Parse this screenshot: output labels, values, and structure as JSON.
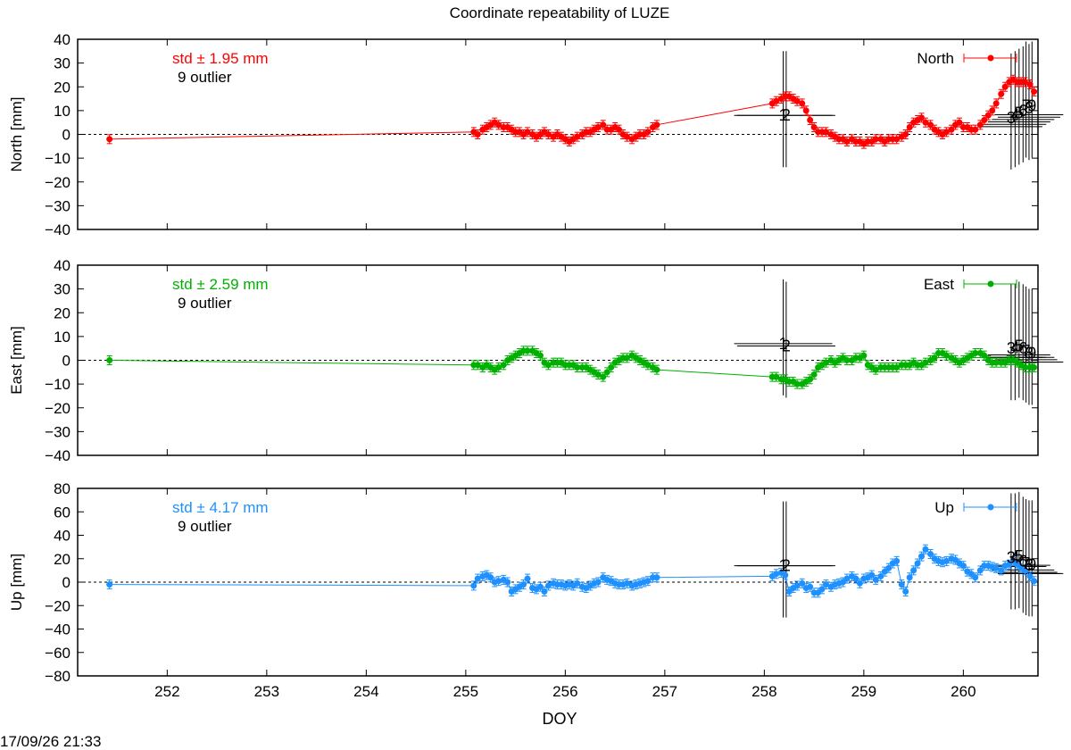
{
  "title": "Coordinate repeatability of LUZE",
  "xlabel": "DOY",
  "footer": "17/09/26 21:33",
  "colors": {
    "north": "#ff0000",
    "east": "#00b000",
    "up": "#1e90ff",
    "outlier": "#000000"
  },
  "chart_data": [
    {
      "type": "scatter",
      "component": "North",
      "ylabel": "North [mm]",
      "legend": "North",
      "legend_position": "top-right",
      "std_label": "std ± 1.95 mm",
      "outlier_label": "9 outlier",
      "xlim": [
        251.1,
        260.75
      ],
      "ylim": [
        -40,
        40
      ],
      "yticks": [
        -40,
        -30,
        -20,
        -10,
        0,
        10,
        20,
        30,
        40
      ],
      "xticks": [
        252,
        253,
        254,
        255,
        256,
        257,
        258,
        259,
        260
      ],
      "zero_line": true,
      "series": [
        {
          "name": "North",
          "x": [
            251.42,
            255.08,
            255.12,
            255.17,
            255.21,
            255.25,
            255.29,
            255.33,
            255.38,
            255.42,
            255.46,
            255.5,
            255.54,
            255.58,
            255.62,
            255.67,
            255.71,
            255.75,
            255.79,
            255.83,
            255.88,
            255.92,
            255.96,
            256.0,
            256.04,
            256.08,
            256.12,
            256.17,
            256.21,
            256.25,
            256.29,
            256.33,
            256.38,
            256.42,
            256.46,
            256.5,
            256.54,
            256.58,
            256.62,
            256.67,
            256.71,
            256.75,
            256.79,
            256.83,
            256.88,
            256.92,
            258.08,
            258.12,
            258.17,
            258.21,
            258.25,
            258.29,
            258.33,
            258.38,
            258.42,
            258.46,
            258.5,
            258.54,
            258.58,
            258.62,
            258.67,
            258.71,
            258.75,
            258.79,
            258.83,
            258.88,
            258.92,
            258.96,
            259.0,
            259.04,
            259.08,
            259.12,
            259.17,
            259.21,
            259.25,
            259.29,
            259.33,
            259.38,
            259.42,
            259.46,
            259.5,
            259.54,
            259.58,
            259.62,
            259.67,
            259.71,
            259.75,
            259.79,
            259.83,
            259.88,
            259.92,
            259.96,
            260.0,
            260.04,
            260.08,
            260.12,
            260.17,
            260.21,
            260.25,
            260.29,
            260.33,
            260.38,
            260.42,
            260.46,
            260.5,
            260.54,
            260.58,
            260.62,
            260.67,
            260.71
          ],
          "y": [
            -2,
            1,
            0,
            2,
            3,
            4,
            5,
            4,
            3,
            3,
            2,
            1,
            1,
            0,
            1,
            0,
            -1,
            0,
            1,
            0,
            -1,
            0,
            -1,
            -2,
            -3,
            -2,
            -1,
            0,
            1,
            1,
            2,
            3,
            4,
            2,
            2,
            3,
            2,
            0,
            -1,
            -2,
            -1,
            0,
            0,
            1,
            3,
            4,
            13,
            14,
            15,
            16,
            16,
            15,
            14,
            13,
            10,
            6,
            3,
            1,
            1,
            1,
            0,
            -1,
            -2,
            -2,
            -3,
            -2,
            -3,
            -3,
            -4,
            -3,
            -3,
            -2,
            -2,
            -3,
            -2,
            -2,
            -2,
            -1,
            0,
            3,
            5,
            6,
            7,
            5,
            4,
            2,
            1,
            0,
            1,
            2,
            4,
            5,
            3,
            3,
            2,
            2,
            4,
            6,
            8,
            10,
            13,
            17,
            20,
            22,
            23,
            22,
            22,
            22,
            21,
            18
          ]
        }
      ],
      "outliers": [
        {
          "label": "1",
          "x": 258.19,
          "y": 8
        },
        {
          "label": "2",
          "x": 258.22,
          "y": 8
        },
        {
          "label": "3",
          "x": 260.48,
          "y": 7
        },
        {
          "label": "4",
          "x": 260.52,
          "y": 8
        },
        {
          "label": "5",
          "x": 260.56,
          "y": 9
        },
        {
          "label": "6",
          "x": 260.6,
          "y": 10
        },
        {
          "label": "7",
          "x": 260.63,
          "y": 12
        },
        {
          "label": "8",
          "x": 260.66,
          "y": 11
        },
        {
          "label": "9",
          "x": 260.69,
          "y": 12
        }
      ]
    },
    {
      "type": "scatter",
      "component": "East",
      "ylabel": "East [mm]",
      "legend": "East",
      "legend_position": "top-right",
      "std_label": "std ± 2.59 mm",
      "outlier_label": "9 outlier",
      "xlim": [
        251.1,
        260.75
      ],
      "ylim": [
        -40,
        40
      ],
      "yticks": [
        -40,
        -30,
        -20,
        -10,
        0,
        10,
        20,
        30,
        40
      ],
      "xticks": [
        252,
        253,
        254,
        255,
        256,
        257,
        258,
        259,
        260
      ],
      "zero_line": true,
      "series": [
        {
          "name": "East",
          "x": [
            251.42,
            255.08,
            255.12,
            255.17,
            255.21,
            255.25,
            255.29,
            255.33,
            255.38,
            255.42,
            255.46,
            255.5,
            255.54,
            255.58,
            255.62,
            255.67,
            255.71,
            255.75,
            255.79,
            255.83,
            255.88,
            255.92,
            255.96,
            256.0,
            256.04,
            256.08,
            256.12,
            256.17,
            256.21,
            256.25,
            256.29,
            256.33,
            256.38,
            256.42,
            256.46,
            256.5,
            256.54,
            256.58,
            256.62,
            256.67,
            256.71,
            256.75,
            256.79,
            256.83,
            256.88,
            256.92,
            258.08,
            258.12,
            258.17,
            258.21,
            258.25,
            258.29,
            258.33,
            258.38,
            258.42,
            258.46,
            258.5,
            258.54,
            258.58,
            258.62,
            258.67,
            258.71,
            258.75,
            258.79,
            258.83,
            258.88,
            258.92,
            258.96,
            259.0,
            259.04,
            259.08,
            259.12,
            259.17,
            259.21,
            259.25,
            259.29,
            259.33,
            259.38,
            259.42,
            259.46,
            259.5,
            259.54,
            259.58,
            259.62,
            259.67,
            259.71,
            259.75,
            259.79,
            259.83,
            259.88,
            259.92,
            259.96,
            260.0,
            260.04,
            260.08,
            260.12,
            260.17,
            260.21,
            260.25,
            260.29,
            260.33,
            260.38,
            260.42,
            260.46,
            260.5,
            260.54,
            260.58,
            260.62,
            260.67,
            260.71
          ],
          "y": [
            0,
            -2,
            -2,
            -3,
            -2,
            -3,
            -4,
            -3,
            -2,
            0,
            1,
            2,
            3,
            4,
            4,
            4,
            3,
            2,
            -1,
            -2,
            -1,
            -1,
            -1,
            -2,
            -2,
            -2,
            -3,
            -3,
            -3,
            -4,
            -5,
            -6,
            -7,
            -5,
            -3,
            -1,
            0,
            1,
            1,
            2,
            1,
            0,
            -1,
            -2,
            -3,
            -4,
            -7,
            -7,
            -8,
            -8,
            -9,
            -9,
            -10,
            -10,
            -9,
            -8,
            -6,
            -3,
            -2,
            -1,
            0,
            -1,
            0,
            1,
            0,
            0,
            1,
            1,
            2,
            -2,
            -3,
            -4,
            -3,
            -3,
            -3,
            -3,
            -3,
            -2,
            -2,
            -2,
            -1,
            -2,
            -2,
            -1,
            0,
            1,
            3,
            3,
            2,
            1,
            0,
            -1,
            0,
            1,
            2,
            3,
            3,
            2,
            0,
            -1,
            -1,
            -1,
            -1,
            0,
            0,
            -1,
            -2,
            -3,
            -3,
            -3
          ]
        }
      ],
      "outliers": [
        {
          "label": "1",
          "x": 258.19,
          "y": 7
        },
        {
          "label": "2",
          "x": 258.22,
          "y": 6
        },
        {
          "label": "3",
          "x": 260.48,
          "y": 5
        },
        {
          "label": "4",
          "x": 260.52,
          "y": 5
        },
        {
          "label": "5",
          "x": 260.56,
          "y": 6
        },
        {
          "label": "6",
          "x": 260.6,
          "y": 5
        },
        {
          "label": "7",
          "x": 260.63,
          "y": 4
        },
        {
          "label": "8",
          "x": 260.66,
          "y": 3
        },
        {
          "label": "9",
          "x": 260.69,
          "y": 3
        }
      ]
    },
    {
      "type": "scatter",
      "component": "Up",
      "ylabel": "Up [mm]",
      "legend": "Up",
      "legend_position": "top-right",
      "std_label": "std ± 4.17 mm",
      "outlier_label": "9 outlier",
      "xlim": [
        251.1,
        260.75
      ],
      "ylim": [
        -80,
        80
      ],
      "yticks": [
        -80,
        -60,
        -40,
        -20,
        0,
        20,
        40,
        60,
        80
      ],
      "xticks": [
        252,
        253,
        254,
        255,
        256,
        257,
        258,
        259,
        260
      ],
      "zero_line": true,
      "series": [
        {
          "name": "Up",
          "x": [
            251.42,
            255.08,
            255.12,
            255.17,
            255.21,
            255.25,
            255.29,
            255.33,
            255.38,
            255.42,
            255.46,
            255.5,
            255.54,
            255.58,
            255.62,
            255.67,
            255.71,
            255.75,
            255.79,
            255.83,
            255.88,
            255.92,
            255.96,
            256.0,
            256.04,
            256.08,
            256.12,
            256.17,
            256.21,
            256.25,
            256.29,
            256.33,
            256.38,
            256.42,
            256.46,
            256.5,
            256.54,
            256.58,
            256.62,
            256.67,
            256.71,
            256.75,
            256.79,
            256.83,
            256.88,
            256.92,
            258.08,
            258.12,
            258.17,
            258.21,
            258.25,
            258.29,
            258.33,
            258.38,
            258.42,
            258.46,
            258.5,
            258.54,
            258.58,
            258.62,
            258.67,
            258.71,
            258.75,
            258.79,
            258.83,
            258.88,
            258.92,
            258.96,
            259.0,
            259.04,
            259.08,
            259.12,
            259.17,
            259.21,
            259.25,
            259.29,
            259.33,
            259.38,
            259.42,
            259.46,
            259.5,
            259.54,
            259.58,
            259.62,
            259.67,
            259.71,
            259.75,
            259.79,
            259.83,
            259.88,
            259.92,
            259.96,
            260.0,
            260.04,
            260.08,
            260.12,
            260.17,
            260.21,
            260.25,
            260.29,
            260.33,
            260.38,
            260.42,
            260.46,
            260.5,
            260.54,
            260.58,
            260.62,
            260.67,
            260.71
          ],
          "y": [
            -2,
            -3,
            3,
            5,
            6,
            4,
            0,
            1,
            2,
            0,
            -8,
            -6,
            -4,
            -2,
            3,
            -5,
            -6,
            -4,
            -8,
            -3,
            -1,
            -2,
            -2,
            -3,
            -2,
            -3,
            -1,
            -4,
            -5,
            -3,
            -1,
            0,
            4,
            2,
            1,
            -1,
            -2,
            -2,
            -1,
            -3,
            -2,
            -1,
            0,
            1,
            4,
            4,
            5,
            7,
            8,
            6,
            -8,
            -5,
            -3,
            -1,
            -5,
            -4,
            -9,
            -9,
            -6,
            -2,
            -4,
            -2,
            -1,
            0,
            3,
            5,
            3,
            -1,
            3,
            4,
            6,
            2,
            5,
            9,
            12,
            16,
            18,
            -2,
            -8,
            4,
            10,
            16,
            22,
            28,
            24,
            20,
            18,
            17,
            18,
            20,
            19,
            16,
            14,
            9,
            7,
            4,
            10,
            14,
            14,
            13,
            12,
            10,
            14,
            15,
            18,
            15,
            12,
            10,
            5,
            1
          ]
        }
      ],
      "outliers": [
        {
          "label": "1",
          "x": 258.19,
          "y": 14
        },
        {
          "label": "2",
          "x": 258.22,
          "y": 14
        },
        {
          "label": "3",
          "x": 260.48,
          "y": 21
        },
        {
          "label": "4",
          "x": 260.52,
          "y": 21
        },
        {
          "label": "5",
          "x": 260.56,
          "y": 22
        },
        {
          "label": "6",
          "x": 260.6,
          "y": 18
        },
        {
          "label": "7",
          "x": 260.63,
          "y": 16
        },
        {
          "label": "8",
          "x": 260.66,
          "y": 15
        },
        {
          "label": "9",
          "x": 260.69,
          "y": 15
        }
      ]
    }
  ]
}
